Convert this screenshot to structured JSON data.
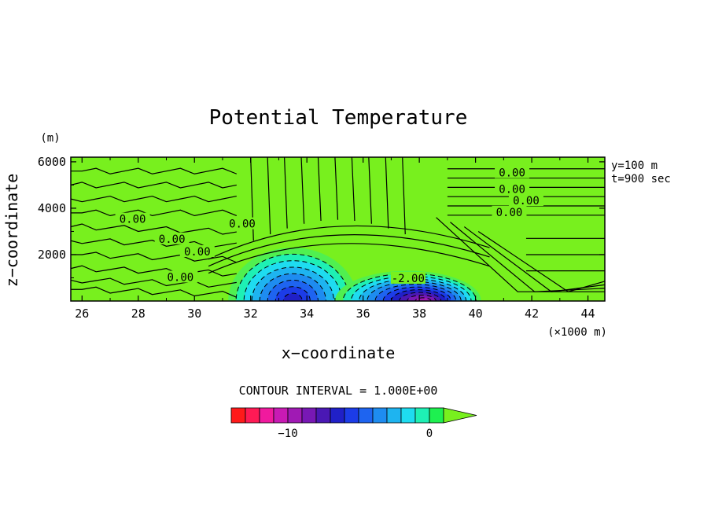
{
  "chart_data": {
    "type": "contour",
    "title": "Potential Temperature",
    "xlabel": "x−coordinate",
    "ylabel": "z−coordinate",
    "y_unit": "(m)",
    "x_unit": "(×1000 m)",
    "xlim": [
      25.6,
      44.6
    ],
    "ylim": [
      0,
      6200
    ],
    "x_ticks": [
      "26",
      "28",
      "30",
      "32",
      "34",
      "36",
      "38",
      "40",
      "42",
      "44"
    ],
    "y_ticks": [
      "2000",
      "4000",
      "6000"
    ],
    "info": [
      "y=100 m",
      "t=900 sec"
    ],
    "contour_interval_label": "CONTOUR INTERVAL = 1.000E+00",
    "contour_labels": [
      {
        "text": "0.00",
        "x": 27.8,
        "z": 3500
      },
      {
        "text": "0.00",
        "x": 29.2,
        "z": 2650
      },
      {
        "text": "0.00",
        "x": 30.1,
        "z": 2100
      },
      {
        "text": "0.00",
        "x": 29.5,
        "z": 1000
      },
      {
        "text": "0.00",
        "x": 31.7,
        "z": 3300
      },
      {
        "text": "0.00",
        "x": 41.3,
        "z": 5500
      },
      {
        "text": "0.00",
        "x": 41.3,
        "z": 4800
      },
      {
        "text": "0.00",
        "x": 41.8,
        "z": 4300
      },
      {
        "text": "0.00",
        "x": 41.2,
        "z": 3800
      },
      {
        "text": "-2.00",
        "x": 37.6,
        "z": 950
      }
    ],
    "cold_pools": [
      {
        "center_x": 33.5,
        "min": -7,
        "extent_x": [
          31.2,
          35.8
        ],
        "top_z": 2300
      },
      {
        "center_x": 38.2,
        "min": -10,
        "extent_x": [
          35.0,
          40.2
        ],
        "top_z": 1300
      }
    ],
    "colorbar": {
      "levels": [
        -14,
        -13,
        -12,
        -11,
        -10,
        -9,
        -8,
        -7,
        -6,
        -5,
        -4,
        -3,
        -2,
        -1,
        0
      ],
      "tick_labels": [
        {
          "text": "−10",
          "value": -10
        },
        {
          "text": "0",
          "value": 0
        }
      ],
      "colors": [
        "#ff1a1a",
        "#ff1a55",
        "#f01a9e",
        "#c81ab4",
        "#a01ab4",
        "#7818b4",
        "#4a18b4",
        "#2020c8",
        "#1c3ce8",
        "#1e64f0",
        "#1e8cf0",
        "#1eb4f0",
        "#1edcf0",
        "#1ef0b4",
        "#1ef050"
      ],
      "extend_color": "#78f01e"
    },
    "background_color": "#78f01e"
  }
}
